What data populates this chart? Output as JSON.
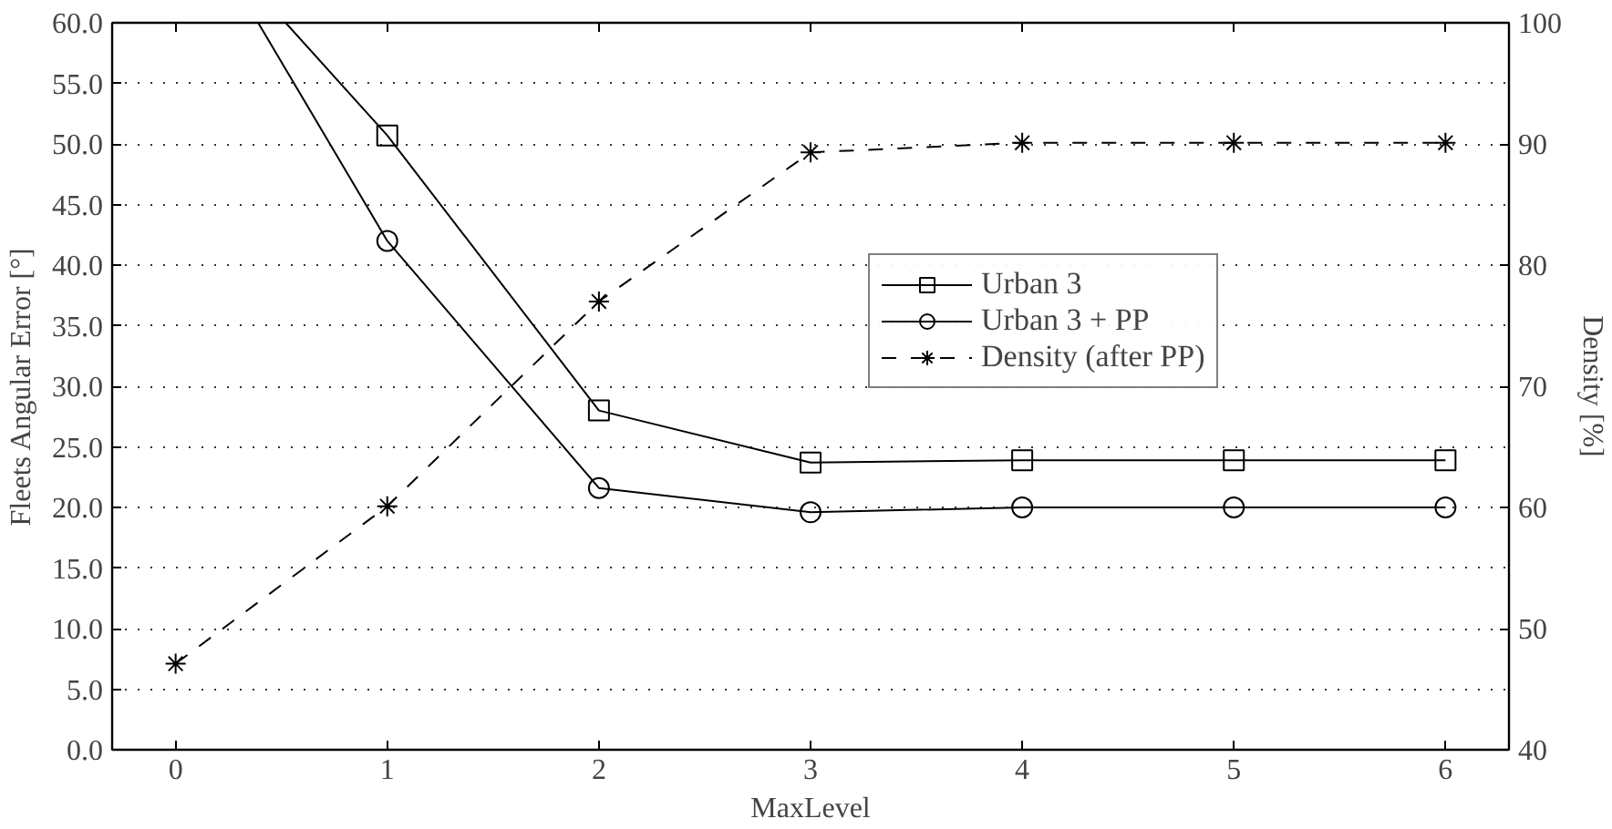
{
  "chart_data": {
    "type": "line",
    "xlabel": "MaxLevel",
    "ylabel": "Fleets Angular Error [°]",
    "y2label": "Density [%]",
    "x": [
      0,
      1,
      2,
      3,
      4,
      5,
      6
    ],
    "series": [
      {
        "name": "Urban 3",
        "color": "#000000",
        "marker": "square",
        "line_style": "solid",
        "values": [
          null,
          50.7,
          28.0,
          23.7,
          23.9,
          23.9,
          23.9
        ]
      },
      {
        "name": "Urban 3 + PP",
        "color": "#000000",
        "marker": "circle",
        "line_style": "solid",
        "values": [
          null,
          42.0,
          21.6,
          19.6,
          20.0,
          20.0,
          20.0
        ]
      },
      {
        "name": "Density (after PP)",
        "color": "#000000",
        "marker": "cross",
        "line_style": "dashed",
        "axis": "y2",
        "values": [
          47.1,
          60.1,
          77.0,
          89.3,
          90.1,
          90.1,
          90.1
        ]
      },
      {
        "color": "#000000",
        "marker": "none",
        "line_style": "solid",
        "x": [
          0.52,
          1
        ],
        "values": [
          60,
          50.7
        ]
      },
      {
        "color": "#000000",
        "marker": "none",
        "line_style": "solid",
        "x": [
          0.39,
          1
        ],
        "values": [
          60,
          42.0
        ]
      }
    ],
    "xlim": [
      -0.3,
      6.3
    ],
    "xticks": [
      0,
      1,
      2,
      3,
      4,
      5,
      6
    ],
    "ylim": [
      0,
      60
    ],
    "yticks": [
      {
        "value": 0,
        "label": "0.0"
      },
      {
        "value": 5,
        "label": "5.0"
      },
      {
        "value": 10,
        "label": "10.0"
      },
      {
        "value": 15,
        "label": "15.0"
      },
      {
        "value": 20,
        "label": "20.0"
      },
      {
        "value": 25,
        "label": "25.0"
      },
      {
        "value": 30,
        "label": "30.0"
      },
      {
        "value": 35,
        "label": "35.0"
      },
      {
        "value": 40,
        "label": "40.0"
      },
      {
        "value": 45,
        "label": "45.0"
      },
      {
        "value": 50,
        "label": "50.0"
      },
      {
        "value": 55,
        "label": "55.0"
      },
      {
        "value": 60,
        "label": "60.0"
      }
    ],
    "y2lim": [
      40,
      100
    ],
    "y2ticks": [
      40,
      50,
      60,
      70,
      80,
      90,
      100
    ],
    "grid": "y",
    "legend": "center right"
  }
}
